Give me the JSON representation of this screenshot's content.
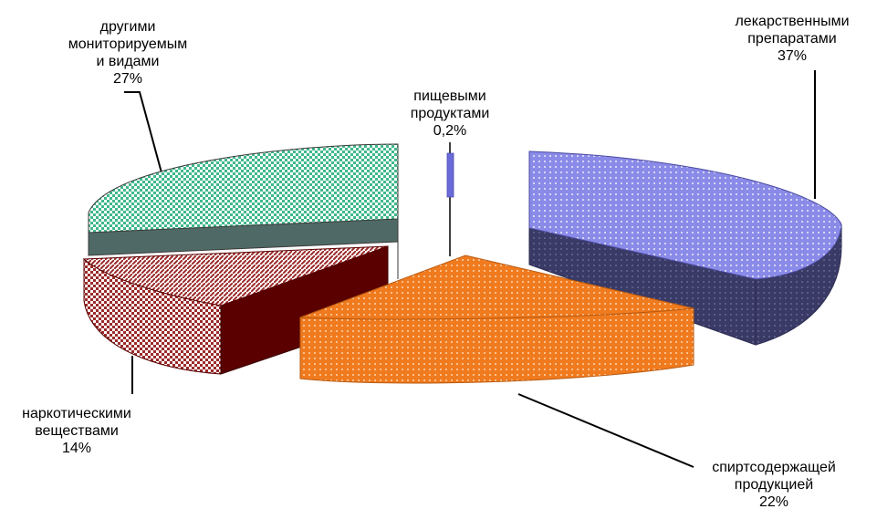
{
  "chart_data": {
    "type": "pie",
    "three_d": true,
    "exploded": true,
    "legend": "none",
    "slices": [
      {
        "label_lines": [
          "лекарственными",
          "препаратами"
        ],
        "value_text": "37%",
        "value": 37,
        "color": "#8c8ce6",
        "side_color": "#3b3b6b"
      },
      {
        "label_lines": [
          "спиртсодержащей",
          "продукцией"
        ],
        "value_text": "22%",
        "value": 22,
        "color": "#f07a1e",
        "side_color": "#f07a1e"
      },
      {
        "label_lines": [
          "наркотическими",
          "веществами"
        ],
        "value_text": "14%",
        "value": 14,
        "color": "#9b2a2a",
        "side_color": "#5a0000"
      },
      {
        "label_lines": [
          "другими",
          "мониторируемым",
          "и видами"
        ],
        "value_text": "27%",
        "value": 27,
        "color": "#3fb88c",
        "side_color": "#4f6a66"
      },
      {
        "label_lines": [
          "пищевыми",
          "продуктами"
        ],
        "value_text": "0,2%",
        "value": 0.2,
        "color": "#7a7ae0",
        "side_color": "#5050a0"
      }
    ]
  }
}
